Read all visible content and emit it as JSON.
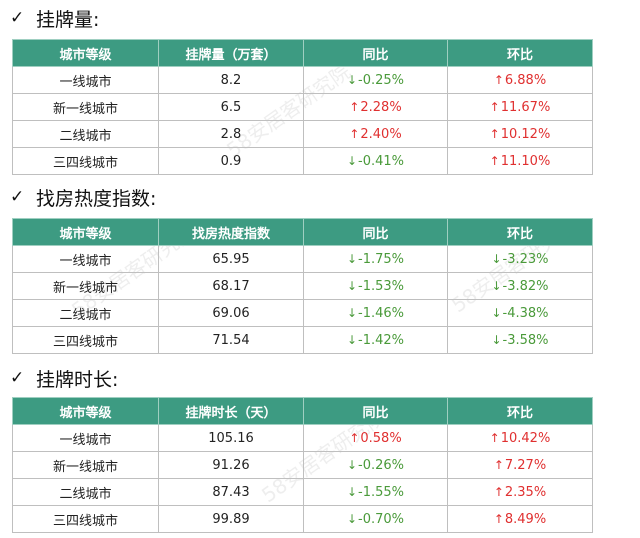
{
  "sections": [
    {
      "title": "挂牌量:",
      "headers": [
        "城市等级",
        "挂牌量（万套）",
        "同比",
        "环比"
      ],
      "rows": [
        {
          "city": "一线城市",
          "value": "8.2",
          "yoy": "-0.25%",
          "yoy_dir": "down",
          "mom": "6.88%",
          "mom_dir": "up"
        },
        {
          "city": "新一线城市",
          "value": "6.5",
          "yoy": "2.28%",
          "yoy_dir": "up",
          "mom": "11.67%",
          "mom_dir": "up"
        },
        {
          "city": "二线城市",
          "value": "2.8",
          "yoy": "2.40%",
          "yoy_dir": "up",
          "mom": "10.12%",
          "mom_dir": "up"
        },
        {
          "city": "三四线城市",
          "value": "0.9",
          "yoy": "-0.41%",
          "yoy_dir": "down",
          "mom": "11.10%",
          "mom_dir": "up"
        }
      ]
    },
    {
      "title": "找房热度指数:",
      "headers": [
        "城市等级",
        "找房热度指数",
        "同比",
        "环比"
      ],
      "rows": [
        {
          "city": "一线城市",
          "value": "65.95",
          "yoy": "-1.75%",
          "yoy_dir": "down",
          "mom": "-3.23%",
          "mom_dir": "down"
        },
        {
          "city": "新一线城市",
          "value": "68.17",
          "yoy": "-1.53%",
          "yoy_dir": "down",
          "mom": "-3.82%",
          "mom_dir": "down"
        },
        {
          "city": "二线城市",
          "value": "69.06",
          "yoy": "-1.46%",
          "yoy_dir": "down",
          "mom": "-4.38%",
          "mom_dir": "down"
        },
        {
          "city": "三四线城市",
          "value": "71.54",
          "yoy": "-1.42%",
          "yoy_dir": "down",
          "mom": "-3.58%",
          "mom_dir": "down"
        }
      ]
    },
    {
      "title": "挂牌时长:",
      "headers": [
        "城市等级",
        "挂牌时长（天）",
        "同比",
        "环比"
      ],
      "rows": [
        {
          "city": "一线城市",
          "value": "105.16",
          "yoy": "0.58%",
          "yoy_dir": "up",
          "mom": "10.42%",
          "mom_dir": "up"
        },
        {
          "city": "新一线城市",
          "value": "91.26",
          "yoy": "-0.26%",
          "yoy_dir": "down",
          "mom": "7.27%",
          "mom_dir": "up"
        },
        {
          "city": "二线城市",
          "value": "87.43",
          "yoy": "-1.55%",
          "yoy_dir": "down",
          "mom": "2.35%",
          "mom_dir": "up"
        },
        {
          "city": "三四线城市",
          "value": "99.89",
          "yoy": "-0.70%",
          "yoy_dir": "down",
          "mom": "8.49%",
          "mom_dir": "up"
        }
      ]
    }
  ],
  "icons": {
    "check": "check-icon",
    "up": "arrow-up-icon",
    "down": "arrow-down-icon"
  },
  "colors": {
    "header_bg": "#3d9b82",
    "up": "#e03030",
    "down": "#4a9a3a"
  },
  "watermark": "58安居客研究院"
}
